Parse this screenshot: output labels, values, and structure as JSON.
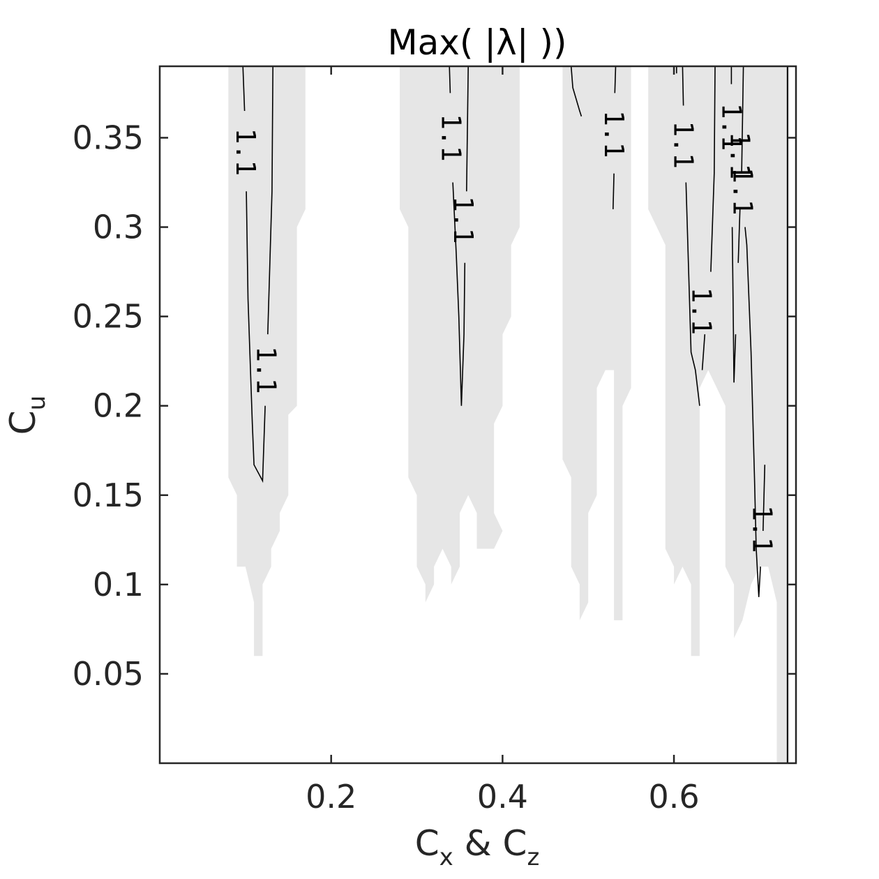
{
  "chart_data": {
    "type": "contour",
    "title": "Max( |λ| ))",
    "xlabel": {
      "main": "C",
      "sub1": "x",
      "mid": " & C",
      "sub2": "z"
    },
    "ylabel": {
      "main": "C",
      "sub": "u"
    },
    "xlim": [
      0.0,
      0.7424
    ],
    "ylim": [
      0.0,
      0.39
    ],
    "x_ticks": [
      {
        "value": 0.2,
        "label": "0.2"
      },
      {
        "value": 0.4,
        "label": "0.4"
      },
      {
        "value": 0.6,
        "label": "0.6"
      }
    ],
    "y_ticks": [
      {
        "value": 0.05,
        "label": "0.05"
      },
      {
        "value": 0.1,
        "label": "0.1"
      },
      {
        "value": 0.15,
        "label": "0.15"
      },
      {
        "value": 0.2,
        "label": "0.2"
      },
      {
        "value": 0.25,
        "label": "0.25"
      },
      {
        "value": 0.3,
        "label": "0.3"
      },
      {
        "value": 0.35,
        "label": "0.35"
      }
    ],
    "grid": false,
    "colors": {
      "fill": "#e6e6e6",
      "contour": "#000000",
      "axis": "#262626"
    },
    "contour_level_label": "1.1",
    "filled_regions": [
      {
        "name": "region-1",
        "points": [
          [
            0.08,
            0.39
          ],
          [
            0.17,
            0.39
          ],
          [
            0.17,
            0.31
          ],
          [
            0.16,
            0.3
          ],
          [
            0.16,
            0.2
          ],
          [
            0.15,
            0.195
          ],
          [
            0.15,
            0.15
          ],
          [
            0.14,
            0.14
          ],
          [
            0.14,
            0.13
          ],
          [
            0.13,
            0.12
          ],
          [
            0.13,
            0.11
          ],
          [
            0.12,
            0.1
          ],
          [
            0.12,
            0.06
          ],
          [
            0.11,
            0.06
          ],
          [
            0.11,
            0.09
          ],
          [
            0.1,
            0.11
          ],
          [
            0.09,
            0.11
          ],
          [
            0.09,
            0.15
          ],
          [
            0.08,
            0.16
          ]
        ]
      },
      {
        "name": "region-2",
        "points": [
          [
            0.28,
            0.39
          ],
          [
            0.42,
            0.39
          ],
          [
            0.42,
            0.3
          ],
          [
            0.41,
            0.29
          ],
          [
            0.41,
            0.25
          ],
          [
            0.4,
            0.24
          ],
          [
            0.4,
            0.2
          ],
          [
            0.39,
            0.19
          ],
          [
            0.39,
            0.14
          ],
          [
            0.4,
            0.13
          ],
          [
            0.39,
            0.12
          ],
          [
            0.37,
            0.12
          ],
          [
            0.37,
            0.14
          ],
          [
            0.36,
            0.15
          ],
          [
            0.35,
            0.14
          ],
          [
            0.35,
            0.11
          ],
          [
            0.34,
            0.1
          ],
          [
            0.34,
            0.11
          ],
          [
            0.33,
            0.12
          ],
          [
            0.32,
            0.11
          ],
          [
            0.32,
            0.1
          ],
          [
            0.31,
            0.09
          ],
          [
            0.31,
            0.1
          ],
          [
            0.3,
            0.11
          ],
          [
            0.3,
            0.15
          ],
          [
            0.29,
            0.16
          ],
          [
            0.29,
            0.3
          ],
          [
            0.28,
            0.31
          ]
        ]
      },
      {
        "name": "region-3",
        "points": [
          [
            0.47,
            0.39
          ],
          [
            0.55,
            0.39
          ],
          [
            0.55,
            0.21
          ],
          [
            0.54,
            0.2
          ],
          [
            0.54,
            0.08
          ],
          [
            0.53,
            0.08
          ],
          [
            0.53,
            0.22
          ],
          [
            0.52,
            0.22
          ],
          [
            0.51,
            0.21
          ],
          [
            0.51,
            0.15
          ],
          [
            0.5,
            0.14
          ],
          [
            0.5,
            0.09
          ],
          [
            0.49,
            0.08
          ],
          [
            0.49,
            0.1
          ],
          [
            0.48,
            0.11
          ],
          [
            0.48,
            0.16
          ],
          [
            0.47,
            0.17
          ]
        ]
      },
      {
        "name": "region-4",
        "points": [
          [
            0.57,
            0.39
          ],
          [
            0.735,
            0.39
          ],
          [
            0.735,
            0.0
          ],
          [
            0.72,
            0.0
          ],
          [
            0.72,
            0.09
          ],
          [
            0.71,
            0.11
          ],
          [
            0.7,
            0.11
          ],
          [
            0.69,
            0.1
          ],
          [
            0.68,
            0.08
          ],
          [
            0.67,
            0.07
          ],
          [
            0.67,
            0.1
          ],
          [
            0.66,
            0.11
          ],
          [
            0.66,
            0.2
          ],
          [
            0.65,
            0.21
          ],
          [
            0.64,
            0.22
          ],
          [
            0.63,
            0.21
          ],
          [
            0.63,
            0.06
          ],
          [
            0.62,
            0.06
          ],
          [
            0.62,
            0.1
          ],
          [
            0.61,
            0.11
          ],
          [
            0.6,
            0.1
          ],
          [
            0.6,
            0.11
          ],
          [
            0.59,
            0.12
          ],
          [
            0.59,
            0.29
          ],
          [
            0.58,
            0.3
          ],
          [
            0.57,
            0.31
          ]
        ]
      }
    ],
    "contour_lines": [
      {
        "name": "contour-a",
        "points": [
          [
            0.097,
            0.39
          ],
          [
            0.099,
            0.365
          ]
        ]
      },
      {
        "name": "contour-b",
        "points": [
          [
            0.101,
            0.32
          ],
          [
            0.103,
            0.26
          ],
          [
            0.108,
            0.19
          ],
          [
            0.11,
            0.167
          ],
          [
            0.12,
            0.158
          ],
          [
            0.123,
            0.2
          ]
        ]
      },
      {
        "name": "contour-c",
        "points": [
          [
            0.126,
            0.24
          ],
          [
            0.131,
            0.32
          ],
          [
            0.132,
            0.39
          ]
        ]
      },
      {
        "name": "contour-d",
        "points": [
          [
            0.338,
            0.39
          ],
          [
            0.339,
            0.375
          ]
        ]
      },
      {
        "name": "contour-e",
        "points": [
          [
            0.342,
            0.325
          ],
          [
            0.346,
            0.285
          ],
          [
            0.349,
            0.25
          ],
          [
            0.352,
            0.2
          ],
          [
            0.355,
            0.24
          ],
          [
            0.356,
            0.28
          ]
        ]
      },
      {
        "name": "contour-f",
        "points": [
          [
            0.358,
            0.32
          ],
          [
            0.36,
            0.39
          ]
        ]
      },
      {
        "name": "contour-g",
        "points": [
          [
            0.48,
            0.39
          ],
          [
            0.482,
            0.378
          ],
          [
            0.49,
            0.365
          ],
          [
            0.492,
            0.362
          ]
        ]
      },
      {
        "name": "contour-h",
        "points": [
          [
            0.532,
            0.39
          ],
          [
            0.531,
            0.375
          ]
        ]
      },
      {
        "name": "contour-i",
        "points": [
          [
            0.53,
            0.33
          ],
          [
            0.529,
            0.31
          ]
        ]
      },
      {
        "name": "contour-j",
        "points": [
          [
            0.603,
            0.39
          ],
          [
            0.603,
            0.386
          ]
        ]
      },
      {
        "name": "contour-k",
        "points": [
          [
            0.61,
            0.39
          ],
          [
            0.611,
            0.368
          ]
        ]
      },
      {
        "name": "contour-l",
        "points": [
          [
            0.614,
            0.325
          ],
          [
            0.62,
            0.23
          ],
          [
            0.625,
            0.22
          ],
          [
            0.63,
            0.2
          ]
        ]
      },
      {
        "name": "contour-m",
        "points": [
          [
            0.633,
            0.22
          ],
          [
            0.636,
            0.24
          ]
        ]
      },
      {
        "name": "contour-n",
        "points": [
          [
            0.643,
            0.275
          ],
          [
            0.647,
            0.33
          ],
          [
            0.648,
            0.39
          ]
        ]
      },
      {
        "name": "contour-o",
        "points": [
          [
            0.667,
            0.39
          ],
          [
            0.667,
            0.38
          ]
        ]
      },
      {
        "name": "contour-p",
        "points": [
          [
            0.668,
            0.3
          ],
          [
            0.669,
            0.26
          ],
          [
            0.67,
            0.213
          ],
          [
            0.672,
            0.24
          ]
        ]
      },
      {
        "name": "contour-q",
        "points": [
          [
            0.675,
            0.28
          ],
          [
            0.677,
            0.31
          ]
        ]
      },
      {
        "name": "contour-r",
        "points": [
          [
            0.679,
            0.33
          ],
          [
            0.681,
            0.39
          ]
        ]
      },
      {
        "name": "contour-s",
        "points": [
          [
            0.683,
            0.3
          ],
          [
            0.685,
            0.29
          ],
          [
            0.69,
            0.23
          ],
          [
            0.694,
            0.16
          ],
          [
            0.696,
            0.12
          ],
          [
            0.699,
            0.093
          ],
          [
            0.701,
            0.11
          ]
        ]
      },
      {
        "name": "contour-t",
        "points": [
          [
            0.704,
            0.13
          ],
          [
            0.706,
            0.167
          ]
        ]
      }
    ],
    "contour_labels": [
      {
        "name": "contour-label-1",
        "x": 0.1,
        "y": 0.342,
        "angle": 90
      },
      {
        "name": "contour-label-2",
        "x": 0.124,
        "y": 0.22,
        "angle": 90
      },
      {
        "name": "contour-label-3",
        "x": 0.34,
        "y": 0.35,
        "angle": 90
      },
      {
        "name": "contour-label-4",
        "x": 0.354,
        "y": 0.304,
        "angle": 90
      },
      {
        "name": "contour-label-5",
        "x": 0.53,
        "y": 0.352,
        "angle": 90
      },
      {
        "name": "contour-label-6",
        "x": 0.611,
        "y": 0.346,
        "angle": 90
      },
      {
        "name": "contour-label-7",
        "x": 0.632,
        "y": 0.253,
        "angle": 90
      },
      {
        "name": "contour-label-8",
        "x": 0.667,
        "y": 0.356,
        "angle": 90
      },
      {
        "name": "contour-label-9",
        "x": 0.677,
        "y": 0.34,
        "angle": 90
      },
      {
        "name": "contour-label-10",
        "x": 0.68,
        "y": 0.32,
        "angle": 90
      },
      {
        "name": "contour-label-11",
        "x": 0.703,
        "y": 0.131,
        "angle": 90
      }
    ],
    "boundary_line_x": 0.7325
  }
}
